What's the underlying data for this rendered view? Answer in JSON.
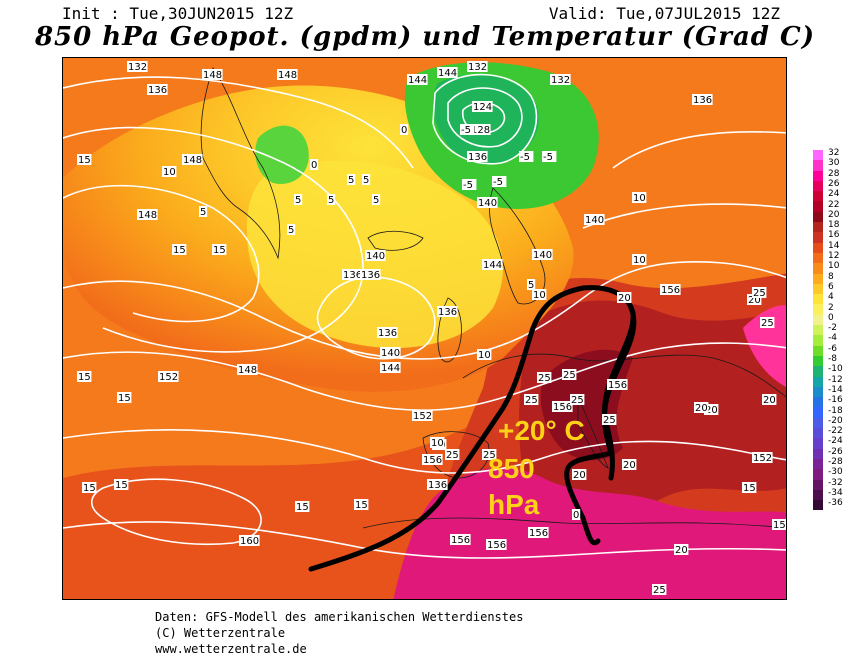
{
  "header": {
    "init": "Init : Tue,30JUN2015 12Z",
    "valid": "Valid: Tue,07JUL2015 12Z",
    "title": "850 hPa Geopot. (gpdm) und Temperatur (Grad C)"
  },
  "annotation": {
    "line1": "+20° C",
    "line2": "850",
    "line3": "hPa"
  },
  "credits": {
    "line1": "Daten: GFS-Modell des amerikanischen Wetterdienstes",
    "line2": "(C) Wetterzentrale",
    "line3": "www.wetterzentrale.de"
  },
  "colors": {
    "annotation_text": "#ffd21a",
    "frontier_line": "#000000",
    "contour_line": "#ffffff"
  },
  "scale": {
    "labels": [
      "32",
      "30",
      "28",
      "26",
      "24",
      "22",
      "20",
      "18",
      "16",
      "14",
      "12",
      "10",
      "8",
      "6",
      "4",
      "2",
      "0",
      "-2",
      "-4",
      "-6",
      "-8",
      "-10",
      "-12",
      "-14",
      "-16",
      "-18",
      "-20",
      "-22",
      "-24",
      "-26",
      "-28",
      "-30",
      "-32",
      "-34",
      "-36"
    ],
    "colors": [
      "#ff66ff",
      "#ff33cc",
      "#ff0099",
      "#e6005c",
      "#cc0033",
      "#b30026",
      "#8c0a1a",
      "#b3261e",
      "#cc3322",
      "#e64d1a",
      "#f26d1a",
      "#f78c1a",
      "#fbab1c",
      "#fdc829",
      "#fde33a",
      "#faf05c",
      "#f2f28c",
      "#cff25c",
      "#a6ec3c",
      "#6fdc2a",
      "#33cc33",
      "#1fb373",
      "#14a6a6",
      "#1a8ccc",
      "#2673e6",
      "#3366ff",
      "#4d5ce6",
      "#5a4dd9",
      "#663fcc",
      "#7030b3",
      "#7a2399",
      "#801a80",
      "#661466",
      "#4d0f4d",
      "#330a33"
    ]
  },
  "contour_labels": {
    "geopotential": [
      "132",
      "136",
      "148",
      "148",
      "144",
      "132",
      "124",
      "128",
      "136",
      "140",
      "136",
      "144",
      "132",
      "136",
      "140",
      "144",
      "148",
      "148",
      "140",
      "136",
      "136",
      "140",
      "144",
      "148",
      "152",
      "152",
      "156",
      "156",
      "156",
      "156",
      "156",
      "152",
      "160",
      "136",
      "136",
      "140",
      "156",
      "156"
    ],
    "temperature": [
      "15",
      "10",
      "5",
      "0",
      "-5",
      "-5",
      "-5",
      "-5",
      "-5",
      "5",
      "5",
      "5",
      "10",
      "10",
      "15",
      "15",
      "15",
      "20",
      "20",
      "20",
      "20",
      "20",
      "25",
      "25",
      "25",
      "25",
      "25",
      "25",
      "15",
      "10",
      "5",
      "10",
      "20",
      "25",
      "25",
      "20",
      "15",
      "15",
      "15",
      "15",
      "10",
      "10",
      "5",
      "0",
      "0",
      "5",
      "5",
      "15",
      "15",
      "20",
      "25",
      "25"
    ]
  }
}
